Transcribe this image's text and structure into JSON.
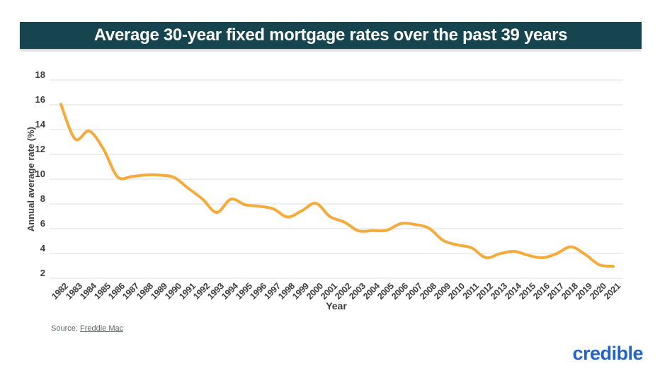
{
  "header": {
    "title": "Average 30-year fixed mortgage rates over the past 39 years",
    "banner_bg": "#16454f",
    "banner_text_color": "#ffffff"
  },
  "chart_data": {
    "type": "line",
    "title": "Average 30-year fixed mortgage rates over the past 39 years",
    "xlabel": "Year",
    "ylabel": "Annual average rate (%)",
    "x": [
      "1982",
      "1983",
      "1984",
      "1985",
      "1986",
      "1987",
      "1988",
      "1989",
      "1990",
      "1991",
      "1992",
      "1993",
      "1994",
      "1995",
      "1996",
      "1997",
      "1998",
      "1999",
      "2000",
      "2001",
      "2002",
      "2003",
      "2004",
      "2005",
      "2006",
      "2007",
      "2008",
      "2009",
      "2010",
      "2011",
      "2012",
      "2013",
      "2014",
      "2015",
      "2016",
      "2017",
      "2018",
      "2019",
      "2020",
      "2021"
    ],
    "series": [
      {
        "name": "30-year fixed mortgage rate",
        "values": [
          16.04,
          13.24,
          13.88,
          12.43,
          10.19,
          10.21,
          10.34,
          10.32,
          10.13,
          9.25,
          8.39,
          7.31,
          8.38,
          7.93,
          7.81,
          7.6,
          6.94,
          7.44,
          8.05,
          6.97,
          6.54,
          5.83,
          5.84,
          5.87,
          6.41,
          6.34,
          6.03,
          5.04,
          4.69,
          4.45,
          3.66,
          3.98,
          4.17,
          3.85,
          3.65,
          3.99,
          4.54,
          3.94,
          3.1,
          2.96
        ]
      }
    ],
    "ylim": [
      2,
      18
    ],
    "yticks": [
      2,
      4,
      6,
      8,
      10,
      12,
      14,
      16,
      18
    ],
    "grid": "horizontal",
    "smooth": true,
    "x_tick_rotation": -45,
    "legend": "none",
    "line_color": "#f5ab3c",
    "grid_color": "#e8e8e8"
  },
  "footer": {
    "source_label": "Source:",
    "source_link_text": "Freddie Mac",
    "logo_text": "credible",
    "logo_color": "#2263c6"
  }
}
